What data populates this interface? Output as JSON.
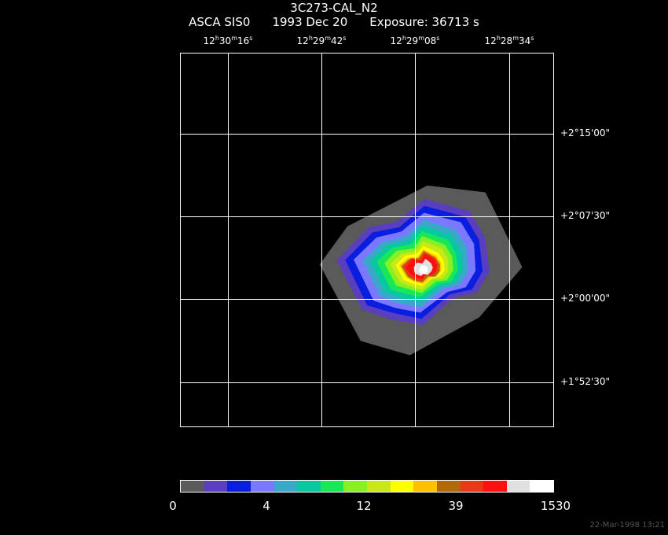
{
  "header": {
    "object": "3C273-CAL_N2",
    "instrument": "ASCA SIS0",
    "date": "1993 Dec 20",
    "exposure": "Exposure: 36713 s"
  },
  "ra_ticks": [
    {
      "h": "12",
      "m": "30",
      "s": "16"
    },
    {
      "h": "12",
      "m": "29",
      "s": "42"
    },
    {
      "h": "12",
      "m": "29",
      "s": "08"
    },
    {
      "h": "12",
      "m": "28",
      "s": "34"
    }
  ],
  "dec_ticks": [
    "+2°15'00\"",
    "+2°07'30\"",
    "+2°00'00\"",
    "+1°52'30\""
  ],
  "colorbar": {
    "colors": [
      "#5a5a5a",
      "#5a3ec0",
      "#0a1ee0",
      "#7a78ff",
      "#3aa8c8",
      "#08c8a0",
      "#18e858",
      "#88f020",
      "#c8e818",
      "#ffff00",
      "#ffc000",
      "#b06808",
      "#e83818",
      "#ff1010",
      "#e0e0e0",
      "#ffffff"
    ],
    "labels": [
      "0",
      "4",
      "12",
      "39",
      "1530"
    ]
  },
  "timestamp": "22-Mar-1998 13:21"
}
